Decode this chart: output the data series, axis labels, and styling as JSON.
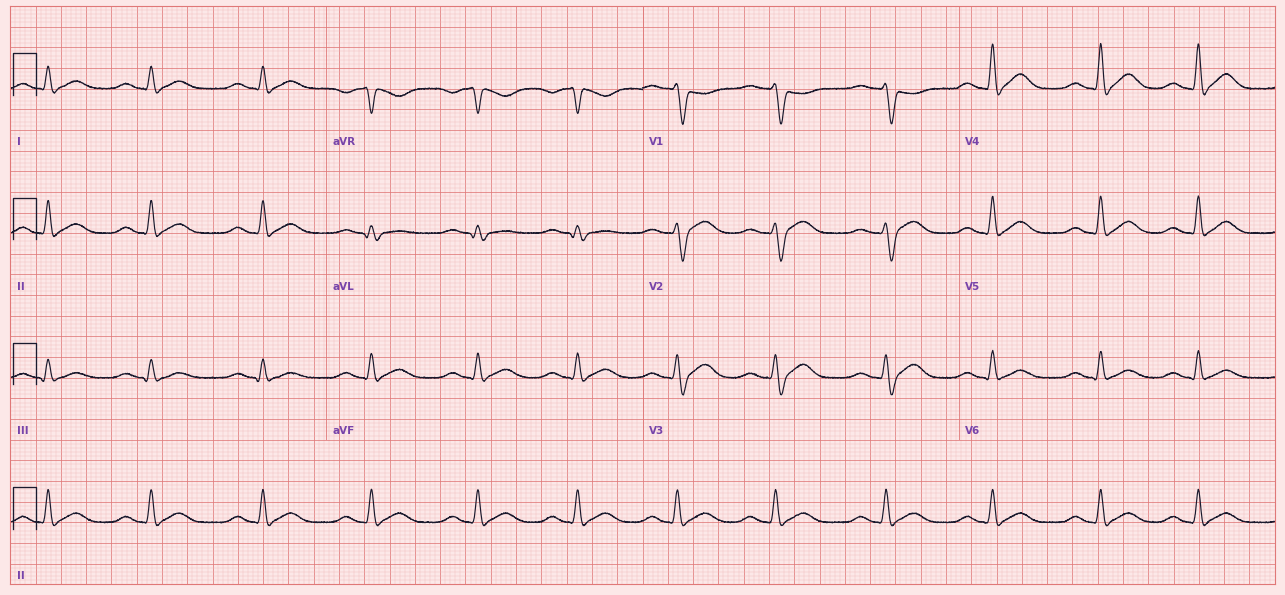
{
  "bg_color": "#fce8e8",
  "grid_minor_color": "#f0b8b8",
  "grid_major_color": "#e07878",
  "ecg_color": "#1a1a2e",
  "ecg_linewidth": 0.85,
  "fig_width": 12.85,
  "fig_height": 5.95,
  "dpi": 100,
  "label_color": "#7744aa",
  "label_fontsize": 7.5,
  "row_leads": [
    [
      "I",
      "aVR",
      "V1",
      "V4"
    ],
    [
      "II",
      "aVL",
      "V2",
      "V5"
    ],
    [
      "III",
      "aVF",
      "V3",
      "V6"
    ],
    [
      "II",
      null,
      null,
      null
    ]
  ]
}
